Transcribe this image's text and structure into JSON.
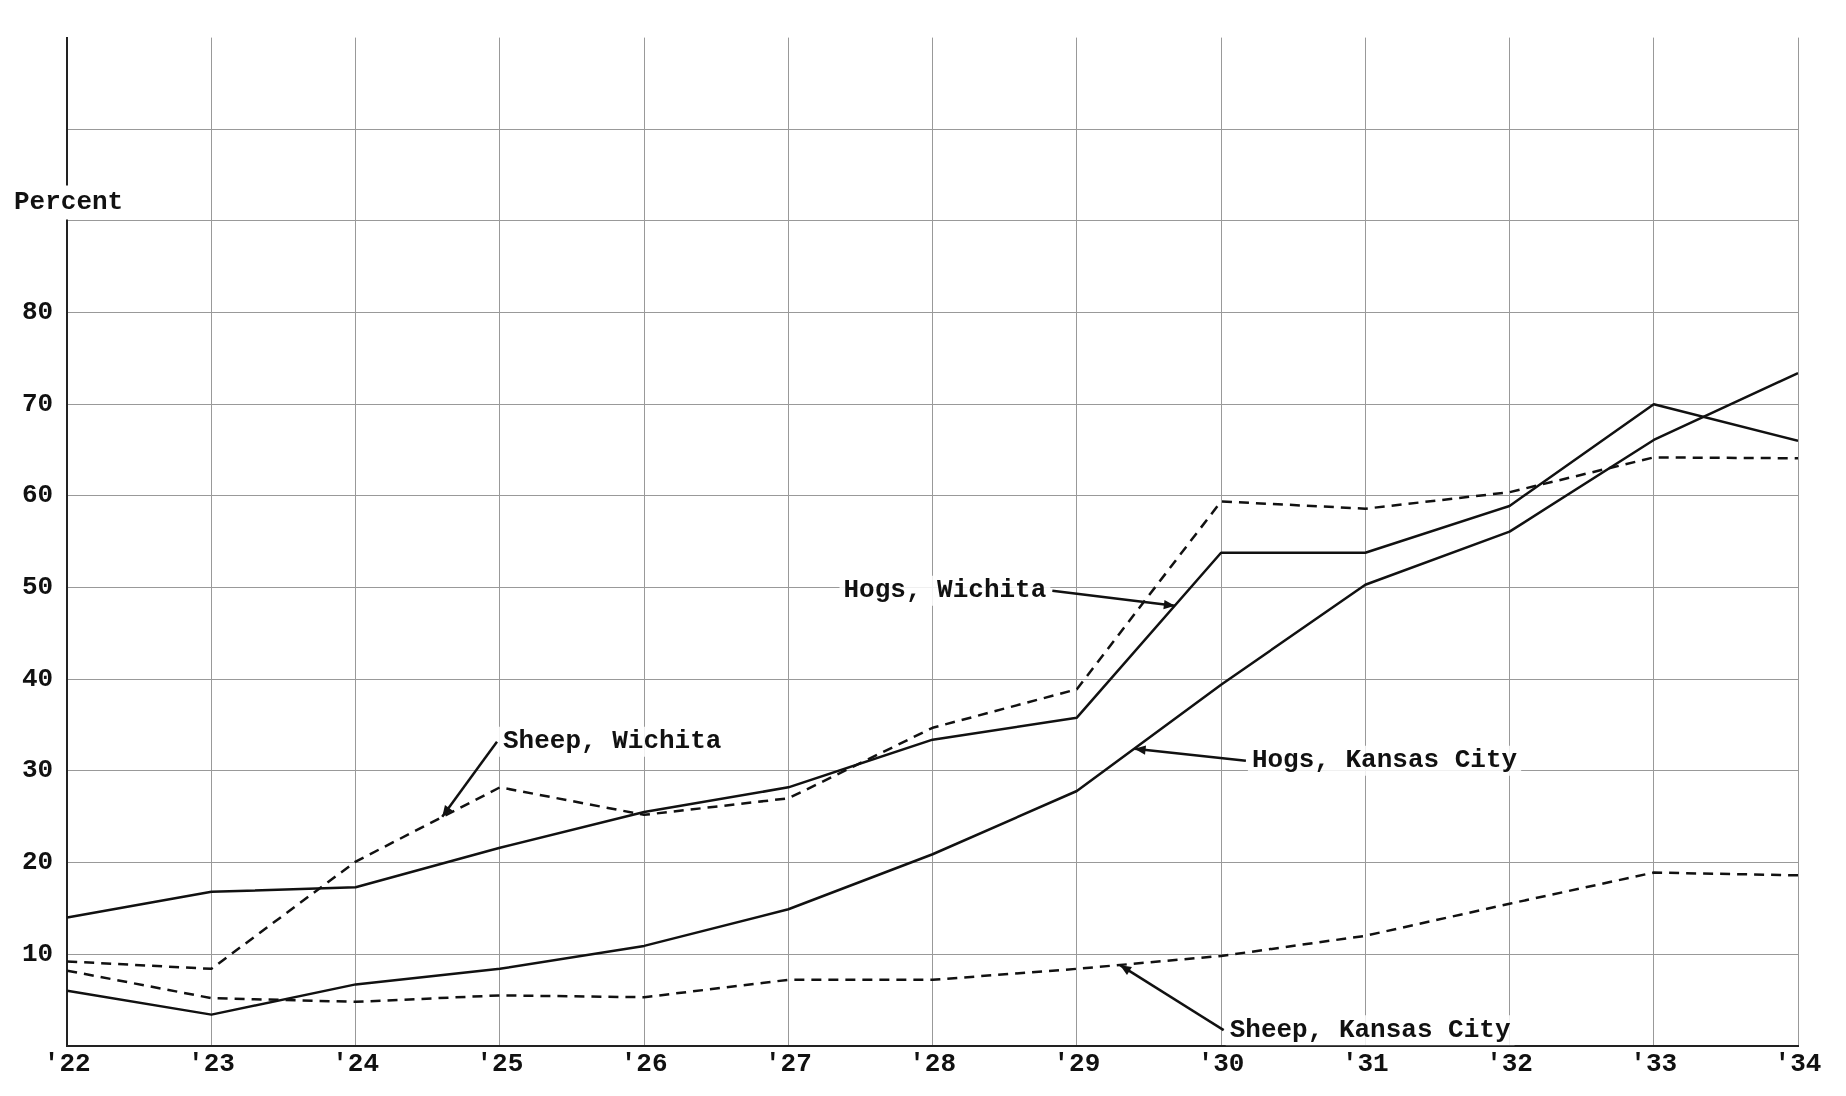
{
  "chart_data": {
    "type": "line",
    "ylabel": "Percent",
    "x": [
      1922,
      1923,
      1924,
      1925,
      1926,
      1927,
      1928,
      1929,
      1930,
      1931,
      1932,
      1933,
      1934
    ],
    "xlim": [
      1922,
      1934
    ],
    "xticks": [
      {
        "value": 1922,
        "label": "'22"
      },
      {
        "value": 1923,
        "label": "'23"
      },
      {
        "value": 1924,
        "label": "'24"
      },
      {
        "value": 1925,
        "label": "'25"
      },
      {
        "value": 1926,
        "label": "'26"
      },
      {
        "value": 1927,
        "label": "'27"
      },
      {
        "value": 1928,
        "label": "'28"
      },
      {
        "value": 1929,
        "label": "'29"
      },
      {
        "value": 1930,
        "label": "'30"
      },
      {
        "value": 1931,
        "label": "'31"
      },
      {
        "value": 1932,
        "label": "'32"
      },
      {
        "value": 1933,
        "label": "'33"
      },
      {
        "value": 1934,
        "label": "'34"
      }
    ],
    "ylim": [
      0,
      110
    ],
    "yticks": [
      {
        "value": 0,
        "label": null
      },
      10,
      20,
      30,
      40,
      50,
      60,
      70,
      80,
      {
        "value": 90,
        "label": null
      },
      {
        "value": 100,
        "label": null
      }
    ],
    "grid": true,
    "legend": false,
    "marker": "none",
    "series": [
      {
        "color": "#111111",
        "line_style": "solid",
        "values": [
          14,
          16.8,
          17.3,
          21.6,
          25.5,
          28.2,
          33.4,
          35.8,
          53.8,
          53.8,
          58.9,
          70,
          66
        ]
      },
      {
        "color": "#111111",
        "line_style": "solid",
        "values": [
          6,
          3.4,
          6.7,
          8.4,
          10.9,
          14.9,
          20.9,
          27.8,
          39.4,
          50.3,
          56.1,
          66.1,
          73.4
        ]
      },
      {
        "color": "#111111",
        "line_style": "dashed",
        "values": [
          9.2,
          8.4,
          20.1,
          28.2,
          25.2,
          27,
          34.7,
          38.9,
          59.4,
          58.6,
          60.4,
          64.2,
          64.1
        ]
      },
      {
        "color": "#111111",
        "line_style": "dashed",
        "values": [
          8.2,
          5.2,
          4.8,
          5.5,
          5.3,
          7.2,
          7.2,
          8.4,
          9.8,
          12,
          15.5,
          18.9,
          18.6
        ]
      }
    ],
    "annotations": [
      {
        "text": "Hogs, Wichita",
        "x": 1929.68,
        "y": 48
      },
      {
        "text": "Hogs, Kansas City",
        "x": 1929.4,
        "y": 32.4
      },
      {
        "text": "Sheep, Wichita",
        "x": 1924.6,
        "y": 25
      },
      {
        "text": "Sheep, Kansas City",
        "x": 1929.3,
        "y": 8.8
      }
    ]
  }
}
